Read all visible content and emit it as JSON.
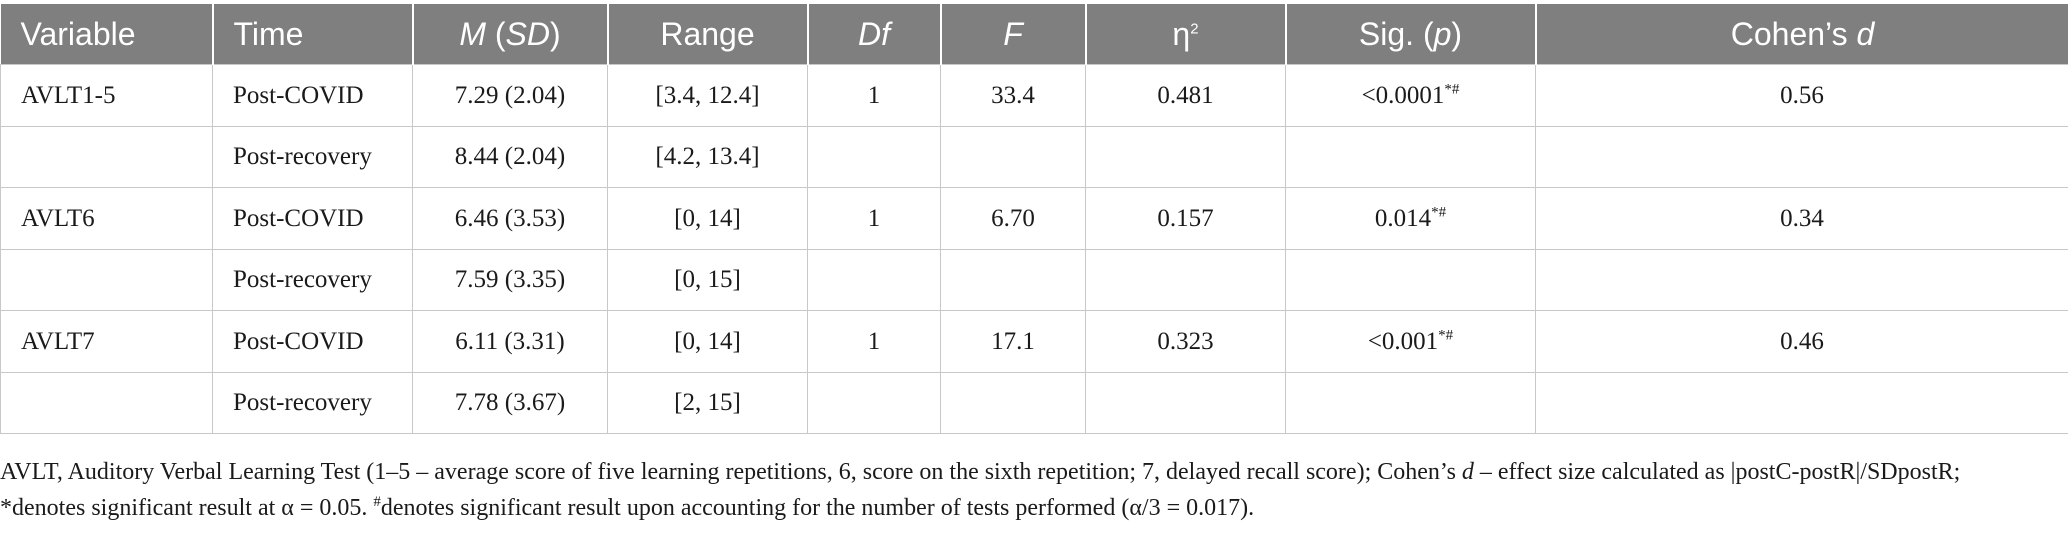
{
  "table": {
    "headers": {
      "variable": "Variable",
      "time": "Time",
      "m_sd_m": "M",
      "m_sd_sd": "SD",
      "range": "Range",
      "df": "Df",
      "f": "F",
      "eta_base": "η",
      "eta_sup": "2",
      "sig_prefix": "Sig. (",
      "sig_p": "p",
      "sig_suffix": ")",
      "cohen_prefix": "Cohen’s ",
      "cohen_d": "d"
    },
    "rows": [
      {
        "variable": "AVLT1-5",
        "time": "Post-COVID",
        "msd": "7.29 (2.04)",
        "range": "[3.4, 12.4]",
        "df": "1",
        "f": "33.4",
        "eta": "0.481",
        "sig": "<0.0001",
        "sig_sup": "*#",
        "cohen": "0.56"
      },
      {
        "variable": "",
        "time": "Post-recovery",
        "msd": "8.44 (2.04)",
        "range": "[4.2, 13.4]",
        "df": "",
        "f": "",
        "eta": "",
        "sig": "",
        "sig_sup": "",
        "cohen": ""
      },
      {
        "variable": "AVLT6",
        "time": "Post-COVID",
        "msd": "6.46 (3.53)",
        "range": "[0, 14]",
        "df": "1",
        "f": "6.70",
        "eta": "0.157",
        "sig": "0.014",
        "sig_sup": "*#",
        "cohen": "0.34"
      },
      {
        "variable": "",
        "time": "Post-recovery",
        "msd": "7.59 (3.35)",
        "range": "[0, 15]",
        "df": "",
        "f": "",
        "eta": "",
        "sig": "",
        "sig_sup": "",
        "cohen": ""
      },
      {
        "variable": "AVLT7",
        "time": "Post-COVID",
        "msd": "6.11 (3.31)",
        "range": "[0, 14]",
        "df": "1",
        "f": "17.1",
        "eta": "0.323",
        "sig": "<0.001",
        "sig_sup": "*#",
        "cohen": "0.46"
      },
      {
        "variable": "",
        "time": "Post-recovery",
        "msd": "7.78 (3.67)",
        "range": "[2, 15]",
        "df": "",
        "f": "",
        "eta": "",
        "sig": "",
        "sig_sup": "",
        "cohen": ""
      }
    ]
  },
  "footnote": {
    "part1": "AVLT, Auditory Verbal Learning Test (1–5 – average score of five learning repetitions, 6, score on the sixth repetition; 7, delayed recall score); Cohen’s ",
    "d": "d",
    "part2": " – effect size calculated as |postC-postR|/SDpostR; *denotes significant result at α = 0.05. ",
    "hash": "#",
    "part3": "denotes significant result upon accounting for the number of tests performed (α/3 = 0.017)."
  }
}
